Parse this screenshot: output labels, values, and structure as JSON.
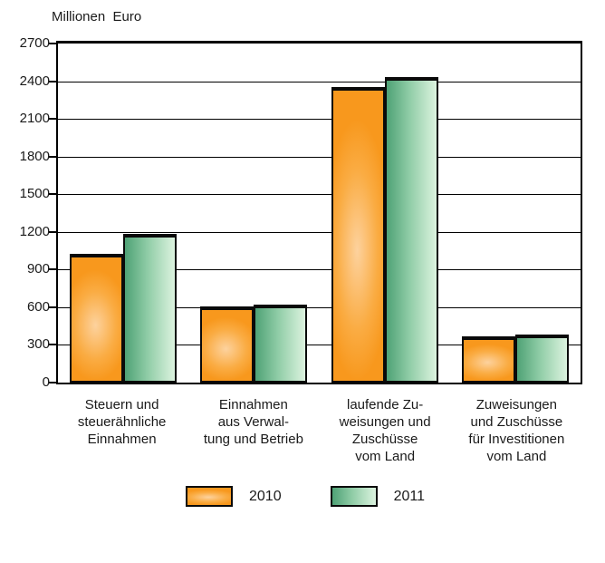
{
  "title": "Millionen  Euro",
  "colors": {
    "bar_2010_main": "#F8981D",
    "bar_2010_highlight": "#FDD29E",
    "bar_2011_dark": "#4FA276",
    "bar_2011_light": "#DCF3DF",
    "bar_border": "#0a0a0a",
    "axis": "#000000",
    "text": "#1a1a1a",
    "background": "#ffffff"
  },
  "chart_data": {
    "type": "bar",
    "title": "Millionen  Euro",
    "xlabel": "",
    "ylabel": "Millionen Euro",
    "ylim": [
      0,
      2700
    ],
    "ytick_step": 300,
    "yticks": [
      2700,
      2400,
      2100,
      1800,
      1500,
      1200,
      900,
      600,
      300,
      0
    ],
    "grid": true,
    "legend_position": "bottom",
    "categories": [
      "Steuern und steuerähnliche Einnahmen",
      "Einnahmen aus Verwaltung und Betrieb",
      "laufende Zuweisungen und Zuschüsse vom Land",
      "Zuweisungen und Zuschüsse für Investitionen vom Land"
    ],
    "category_lines": [
      [
        "Steuern und",
        "steuerähnliche",
        "Einnahmen"
      ],
      [
        "Einnahmen",
        "aus Verwal-",
        "tung und Betrieb"
      ],
      [
        "laufende Zu-",
        "weisungen und",
        "Zuschüsse",
        "vom Land"
      ],
      [
        "Zuweisungen",
        "und Zuschüsse",
        "für Investitionen",
        "vom Land"
      ]
    ],
    "series": [
      {
        "name": "2010",
        "values": [
          1025,
          605,
          2355,
          370
        ],
        "color": "#F8981D"
      },
      {
        "name": "2011",
        "values": [
          1185,
          620,
          2430,
          385
        ],
        "color": "#4FA276"
      }
    ]
  },
  "legend": {
    "items": [
      {
        "label": "2010"
      },
      {
        "label": "2011"
      }
    ]
  }
}
